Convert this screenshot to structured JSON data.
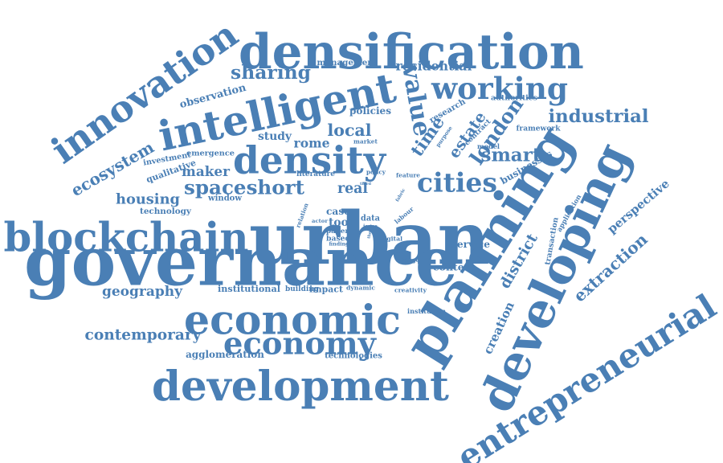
{
  "cloud": {
    "color": "#4a7fb5",
    "words": [
      {
        "text": "densification",
        "weight": 100
      },
      {
        "text": "innovation",
        "weight": 72
      },
      {
        "text": "intelligent",
        "weight": 84
      },
      {
        "text": "value",
        "weight": 66
      },
      {
        "text": "sharing",
        "weight": 38
      },
      {
        "text": "residential",
        "weight": 30
      },
      {
        "text": "working",
        "weight": 48
      },
      {
        "text": "management",
        "weight": 14
      },
      {
        "text": "observation",
        "weight": 18
      },
      {
        "text": "density",
        "weight": 70
      },
      {
        "text": "industrial",
        "weight": 34
      },
      {
        "text": "london",
        "weight": 44
      },
      {
        "text": "time",
        "weight": 40
      },
      {
        "text": "estate",
        "weight": 30
      },
      {
        "text": "policies",
        "weight": 18
      },
      {
        "text": "local",
        "weight": 30
      },
      {
        "text": "research",
        "weight": 16
      },
      {
        "text": "authorities",
        "weight": 14
      },
      {
        "text": "framework",
        "weight": 14
      },
      {
        "text": "smart",
        "weight": 34
      },
      {
        "text": "contract",
        "weight": 14
      },
      {
        "text": "purpose",
        "weight": 10
      },
      {
        "text": "model",
        "weight": 10
      },
      {
        "text": "market",
        "weight": 10
      },
      {
        "text": "study",
        "weight": 20
      },
      {
        "text": "rome",
        "weight": 20
      },
      {
        "text": "qualitative",
        "weight": 14
      },
      {
        "text": "investment",
        "weight": 14
      },
      {
        "text": "emergence",
        "weight": 16
      },
      {
        "text": "maker",
        "weight": 28
      },
      {
        "text": "ecosystem",
        "weight": 30
      },
      {
        "text": "spaceshort",
        "weight": 48
      },
      {
        "text": "cities",
        "weight": 46
      },
      {
        "text": "businesses",
        "weight": 22
      },
      {
        "text": "housing",
        "weight": 28
      },
      {
        "text": "literature",
        "weight": 12
      },
      {
        "text": "real",
        "weight": 20
      },
      {
        "text": "policy",
        "weight": 10
      },
      {
        "text": "feature",
        "weight": 10
      },
      {
        "text": "third",
        "weight": 8
      },
      {
        "text": "technology",
        "weight": 14
      },
      {
        "text": "window",
        "weight": 14
      },
      {
        "text": "blockchain",
        "weight": 72
      },
      {
        "text": "urban",
        "weight": 120
      },
      {
        "text": "planning",
        "weight": 90
      },
      {
        "text": "developing",
        "weight": 92
      },
      {
        "text": "perspective",
        "weight": 22
      },
      {
        "text": "application",
        "weight": 14
      },
      {
        "text": "transaction",
        "weight": 16
      },
      {
        "text": "relation",
        "weight": 10
      },
      {
        "text": "actor",
        "weight": 8
      },
      {
        "text": "case",
        "weight": 18
      },
      {
        "text": "tool",
        "weight": 18
      },
      {
        "text": "paper",
        "weight": 14
      },
      {
        "text": "based",
        "weight": 14
      },
      {
        "text": "finding",
        "weight": 10
      },
      {
        "text": "data",
        "weight": 14
      },
      {
        "text": "issue",
        "weight": 10
      },
      {
        "text": "theory",
        "weight": 8
      },
      {
        "text": "fabric",
        "weight": 8
      },
      {
        "text": "labour",
        "weight": 10
      },
      {
        "text": "digital",
        "weight": 12
      },
      {
        "text": "service",
        "weight": 16
      },
      {
        "text": "extraction",
        "weight": 40
      },
      {
        "text": "district",
        "weight": 34
      },
      {
        "text": "governance",
        "weight": 100
      },
      {
        "text": "change",
        "weight": 12
      },
      {
        "text": "context",
        "weight": 18
      },
      {
        "text": "geography",
        "weight": 28
      },
      {
        "text": "institutional",
        "weight": 16
      },
      {
        "text": "building",
        "weight": 16
      },
      {
        "text": "impact",
        "weight": 18
      },
      {
        "text": "dynamic",
        "weight": 14
      },
      {
        "text": "creativity",
        "weight": 14
      },
      {
        "text": "creation",
        "weight": 30
      },
      {
        "text": "economic",
        "weight": 76
      },
      {
        "text": "institution",
        "weight": 14
      },
      {
        "text": "entrepreneurial",
        "weight": 70
      },
      {
        "text": "contemporary",
        "weight": 34
      },
      {
        "text": "economy",
        "weight": 62
      },
      {
        "text": "agglomeration",
        "weight": 18
      },
      {
        "text": "technologies",
        "weight": 16
      },
      {
        "text": "development",
        "weight": 86
      }
    ]
  }
}
